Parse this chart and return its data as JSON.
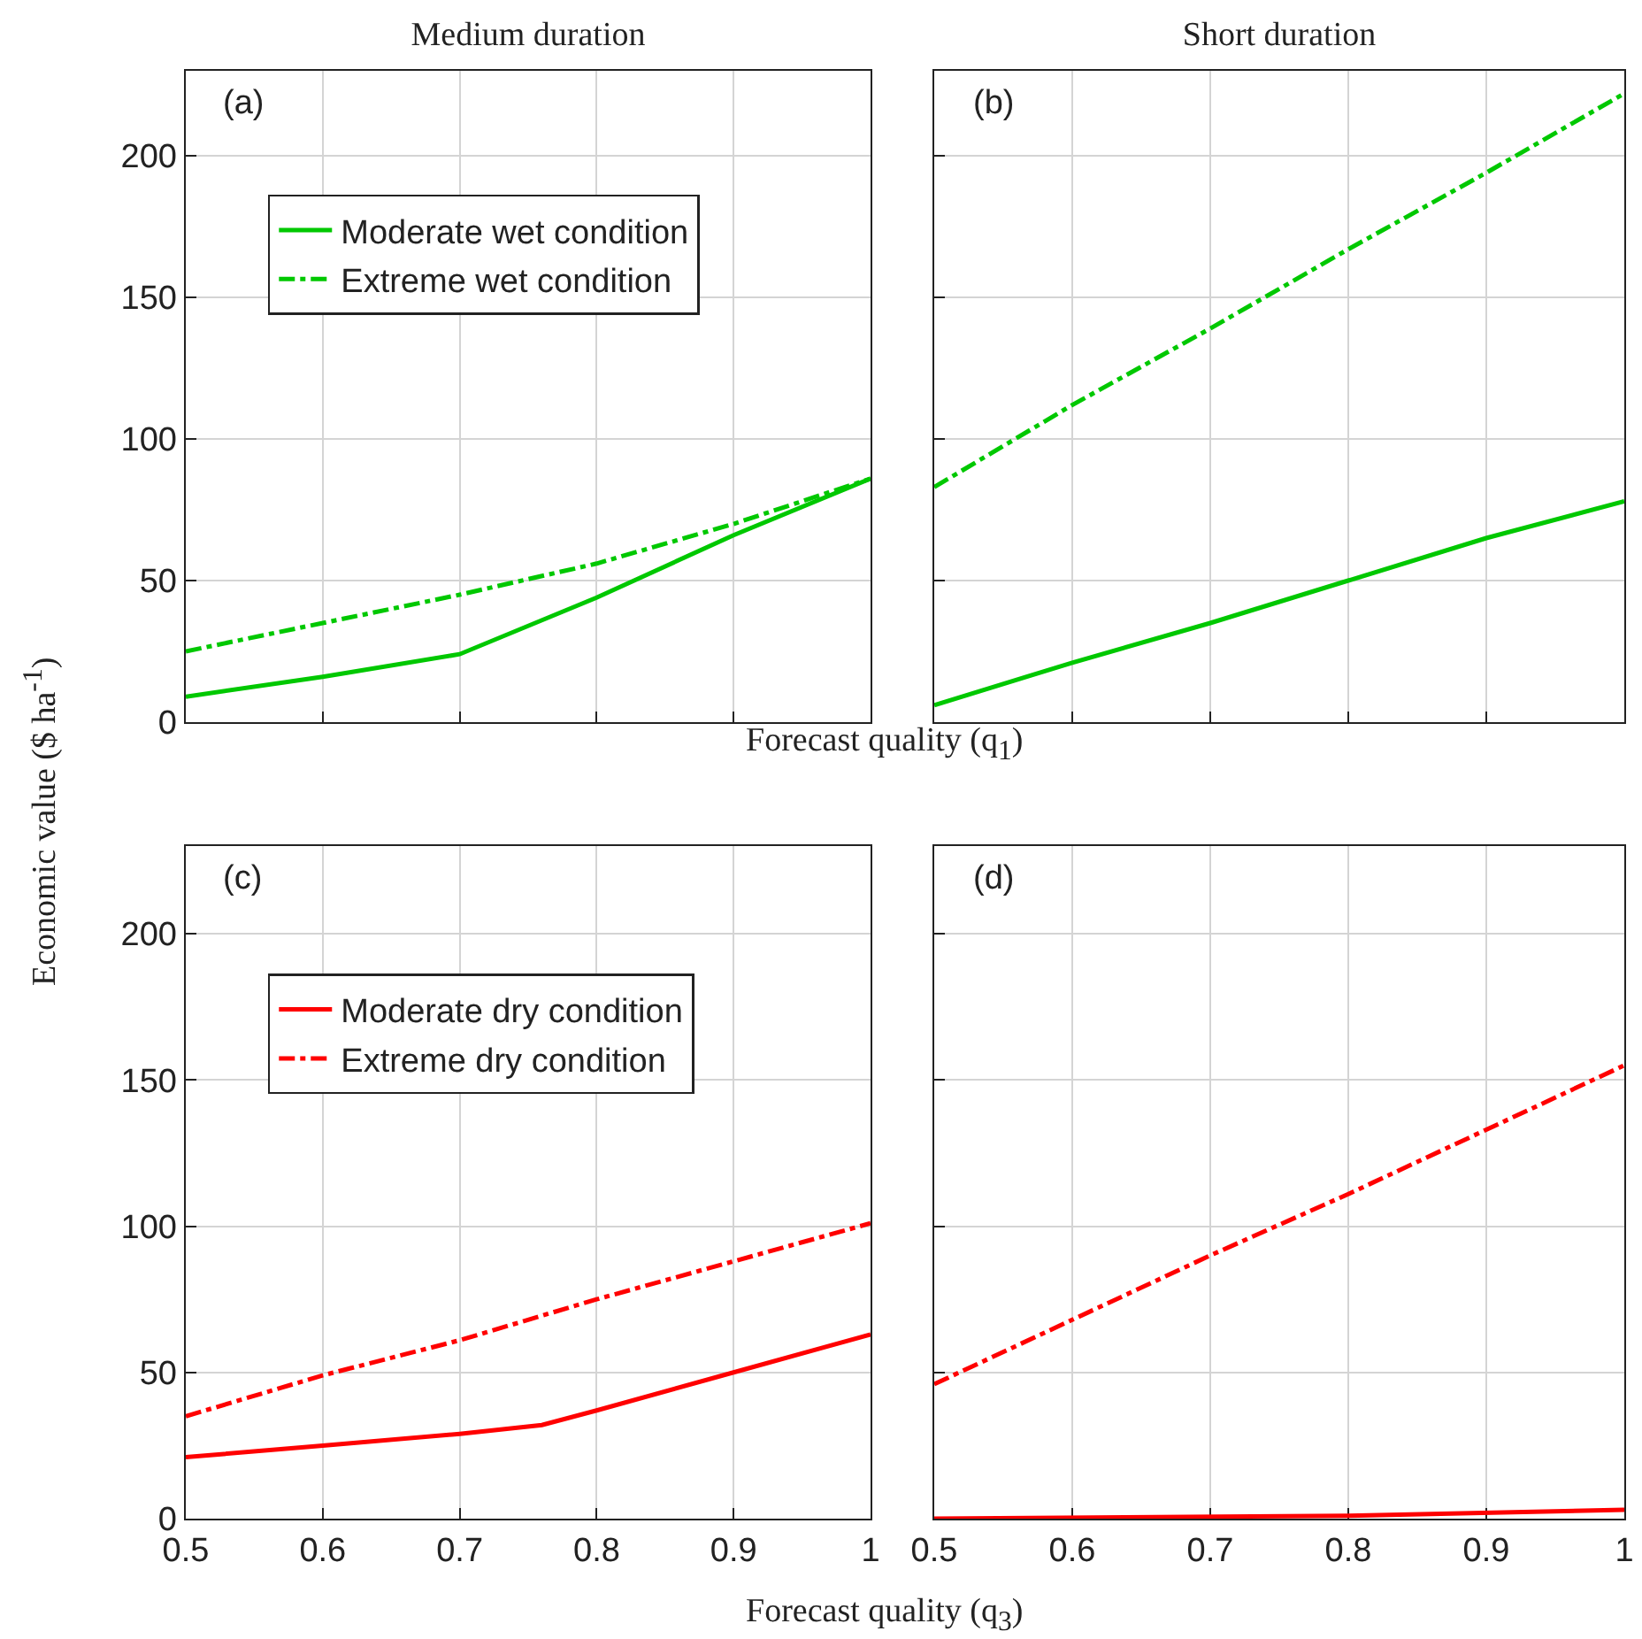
{
  "chart_data": [
    {
      "type": "line",
      "title": "Medium duration",
      "ylabel": "Economic value ($ ha$^{-1}$)",
      "xlabel": "Forecast quality (q$_{1}$)",
      "annotations": [
        "(a)"
      ],
      "xlim": [
        0.5,
        1
      ],
      "xticks": [
        0.5,
        0.6,
        0.7,
        0.8,
        0.9,
        1
      ],
      "ylim": [
        0,
        230
      ],
      "yticks": [
        0,
        50,
        100,
        150,
        200
      ],
      "grid": true,
      "legend": "top left",
      "tick_labels": "y",
      "series": [
        {
          "name": "Moderate wet condition",
          "color": "#00c800",
          "line_style": "solid",
          "x": [
            0.5,
            0.6,
            0.7,
            0.8,
            0.9,
            1
          ],
          "values": [
            9,
            16,
            24,
            44,
            66,
            86
          ]
        },
        {
          "name": "Extreme wet condition",
          "color": "#00c800",
          "line_style": "dashed",
          "x": [
            0.5,
            0.6,
            0.7,
            0.8,
            0.9,
            1
          ],
          "values": [
            25,
            35,
            45,
            56,
            70,
            86
          ]
        }
      ]
    },
    {
      "type": "line",
      "title": "Short duration",
      "annotations": [
        "(b)"
      ],
      "xlim": [
        0.5,
        1
      ],
      "xticks": [
        0.5,
        0.6,
        0.7,
        0.8,
        0.9,
        1
      ],
      "ylim": [
        0,
        230
      ],
      "yticks": [
        0,
        50,
        100,
        150,
        200
      ],
      "grid": true,
      "tick_labels": false,
      "series": [
        {
          "color": "#00c800",
          "line_style": "solid",
          "x": [
            0.5,
            0.6,
            0.7,
            0.8,
            0.9,
            1
          ],
          "values": [
            6,
            21,
            35,
            50,
            65,
            78
          ]
        },
        {
          "color": "#00c800",
          "line_style": "dashed",
          "x": [
            0.5,
            0.6,
            0.7,
            0.8,
            0.9,
            1
          ],
          "values": [
            83,
            112,
            139,
            167,
            194,
            222
          ]
        }
      ]
    },
    {
      "type": "line",
      "xlabel": "Forecast quality (q$_{3}$)",
      "annotations": [
        "(c)"
      ],
      "xlim": [
        0.5,
        1
      ],
      "xticks": [
        0.5,
        0.6,
        0.7,
        0.8,
        0.9,
        1
      ],
      "ylim": [
        0,
        230
      ],
      "yticks": [
        0,
        50,
        100,
        150,
        200
      ],
      "grid": true,
      "legend": "top left",
      "series": [
        {
          "name": "Moderate dry condition",
          "color": "#ff0000",
          "line_style": "solid",
          "x": [
            0.5,
            0.6,
            0.7,
            0.76,
            0.8,
            0.9,
            1
          ],
          "values": [
            21,
            25,
            29,
            32,
            37,
            50,
            63
          ]
        },
        {
          "name": "Extreme dry condition",
          "color": "#ff0000",
          "line_style": "dashed",
          "x": [
            0.5,
            0.6,
            0.7,
            0.8,
            0.9,
            1
          ],
          "values": [
            35,
            49,
            61,
            75,
            88,
            101
          ]
        }
      ]
    },
    {
      "type": "line",
      "annotations": [
        "(d)"
      ],
      "xlim": [
        0.5,
        1
      ],
      "xticks": [
        0.5,
        0.6,
        0.7,
        0.8,
        0.9,
        1
      ],
      "ylim": [
        0,
        230
      ],
      "yticks": [
        0,
        50,
        100,
        150,
        200
      ],
      "grid": true,
      "tick_labels": "x",
      "series": [
        {
          "color": "#ff0000",
          "line_style": "solid",
          "x": [
            0.5,
            0.8,
            1
          ],
          "values": [
            0,
            1,
            3
          ]
        },
        {
          "color": "#ff0000",
          "line_style": "dashed",
          "x": [
            0.5,
            0.6,
            0.7,
            0.8,
            0.9,
            1
          ],
          "values": [
            46,
            68,
            90,
            111,
            133,
            155
          ]
        }
      ]
    }
  ]
}
